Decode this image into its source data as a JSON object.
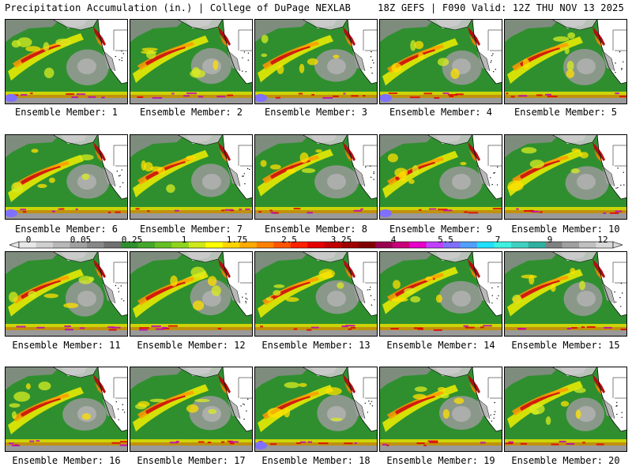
{
  "header": {
    "title_left": "Precipitation Accumulation (in.) | College of DuPage NEXLAB",
    "title_right": "18Z GEFS | F090 Valid: 12Z THU NOV 13 2025"
  },
  "panels": [
    {
      "label": "Ensemble Member: 1"
    },
    {
      "label": "Ensemble Member: 2"
    },
    {
      "label": "Ensemble Member: 3"
    },
    {
      "label": "Ensemble Member: 4"
    },
    {
      "label": "Ensemble Member: 5"
    },
    {
      "label": "Ensemble Member: 6"
    },
    {
      "label": "Ensemble Member: 7"
    },
    {
      "label": "Ensemble Member: 8"
    },
    {
      "label": "Ensemble Member: 9"
    },
    {
      "label": "Ensemble Member: 10"
    },
    {
      "label": "Ensemble Member: 11"
    },
    {
      "label": "Ensemble Member: 12"
    },
    {
      "label": "Ensemble Member: 13"
    },
    {
      "label": "Ensemble Member: 14"
    },
    {
      "label": "Ensemble Member: 15"
    },
    {
      "label": "Ensemble Member: 16"
    },
    {
      "label": "Ensemble Member: 17"
    },
    {
      "label": "Ensemble Member: 18"
    },
    {
      "label": "Ensemble Member: 19"
    },
    {
      "label": "Ensemble Member: 20"
    }
  ],
  "colorbar": {
    "tick_labels": [
      "0",
      "0.05",
      "0.25",
      "1",
      "1.75",
      "2.5",
      "3.25",
      "4",
      "5.5",
      "7",
      "9",
      "12"
    ],
    "colors": [
      "#e8e8e8",
      "#d0d0d0",
      "#b8b8b8",
      "#a0a0a0",
      "#888888",
      "#707070",
      "#2f8f2f",
      "#45a62c",
      "#66bf26",
      "#8ed41e",
      "#cfe81a",
      "#ffff00",
      "#ffd400",
      "#ffaa00",
      "#ff8000",
      "#ff5500",
      "#ff2000",
      "#e60000",
      "#c00000",
      "#a00000",
      "#800000",
      "#9a0050",
      "#c8007a",
      "#e600c8",
      "#c040ff",
      "#8070ff",
      "#50a0ff",
      "#20e0ff",
      "#40f0e0",
      "#40d0c0",
      "#30b0a0",
      "#808080",
      "#a0a0a0",
      "#c0c0c0",
      "#d8d8d8"
    ]
  },
  "colors": {
    "ocean_green": "#2f8f2f",
    "land": "#ffffff",
    "dry_gray": "#9a9a9a",
    "heavy_red": "#cc1010",
    "moderate_yellow": "#f0f000"
  }
}
